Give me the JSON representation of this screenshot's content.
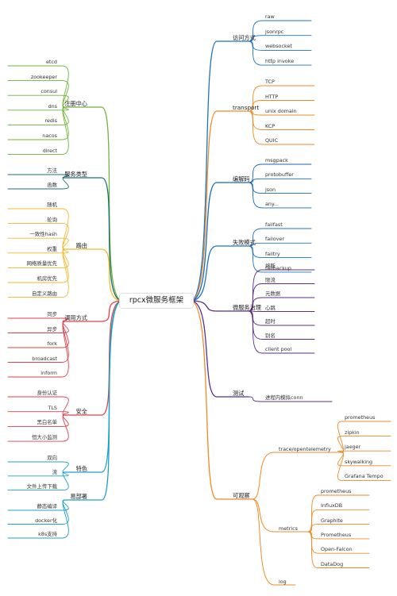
{
  "root": "rpcx微服务框架",
  "branches": [
    {
      "side": "R",
      "label": "访问方式",
      "color": "#1a73c7",
      "items": [
        "raw",
        "jsonrpc",
        "websocket",
        "http invoke"
      ]
    },
    {
      "side": "R",
      "label": "transport",
      "color": "#f08a24",
      "items": [
        "TCP",
        "HTTP",
        "unix domain",
        "KCP",
        "QUIC"
      ]
    },
    {
      "side": "R",
      "label": "编解码",
      "color": "#1669b5",
      "items": [
        "msgpack",
        "protobuffer",
        "json",
        "any..."
      ]
    },
    {
      "side": "R",
      "label": "失败模式",
      "color": "#1a73c7",
      "items": [
        "failfast",
        "failover",
        "failtry",
        "failbackup"
      ]
    },
    {
      "side": "R",
      "label": "微服务治理",
      "color": "#5b2d8e",
      "items": [
        "熔断",
        "限流",
        "元数据",
        "心跳",
        "超时",
        "别名",
        "client pool"
      ]
    },
    {
      "side": "R",
      "label": "测试",
      "color": "#5b2d8e",
      "items": [
        "进程内模拟conn"
      ]
    },
    {
      "side": "R",
      "label": "可观察",
      "color": "#f08a24",
      "items": [],
      "subs": [
        {
          "label": "trace/opentelemetry",
          "items": [
            "prometheus",
            "zipkin",
            "jaeger",
            "skywalking",
            "Grafana Tempo"
          ]
        },
        {
          "label": "metrics",
          "items": [
            "prometheus",
            "InfluxDB",
            "Graphite",
            "Prometheus",
            "Open-Falcon",
            "DataDog"
          ]
        },
        {
          "label": "log",
          "items": []
        }
      ]
    },
    {
      "side": "L",
      "label": "注册中心",
      "color": "#6fb53a",
      "items": [
        "etcd",
        "zookeeper",
        "consul",
        "dns",
        "redis",
        "nacos",
        "direct"
      ]
    },
    {
      "side": "L",
      "label": "服务类型",
      "color": "#17707a",
      "items": [
        "方法",
        "函数"
      ]
    },
    {
      "side": "L",
      "label": "路由",
      "color": "#f5b82e",
      "items": [
        "随机",
        "轮询",
        "一致性hash",
        "权重",
        "网络质量优先",
        "机房优先",
        "自定义路由"
      ]
    },
    {
      "side": "L",
      "label": "调用方式",
      "color": "#e0404a",
      "items": [
        "同步",
        "异步",
        "fork",
        "broadcast",
        "inform"
      ]
    },
    {
      "side": "L",
      "label": "安全",
      "color": "#e0404a",
      "items": [
        "身份认证",
        "TLS",
        "黑白名单",
        "恒大小监测"
      ]
    },
    {
      "side": "L",
      "label": "特色",
      "color": "#1aa3c9",
      "items": [
        "双向",
        "流",
        "文件上传下载"
      ]
    },
    {
      "side": "L",
      "label": "易部署",
      "color": "#1aa3c9",
      "items": [
        "静态编译",
        "docker化",
        "k8s支持"
      ]
    }
  ]
}
